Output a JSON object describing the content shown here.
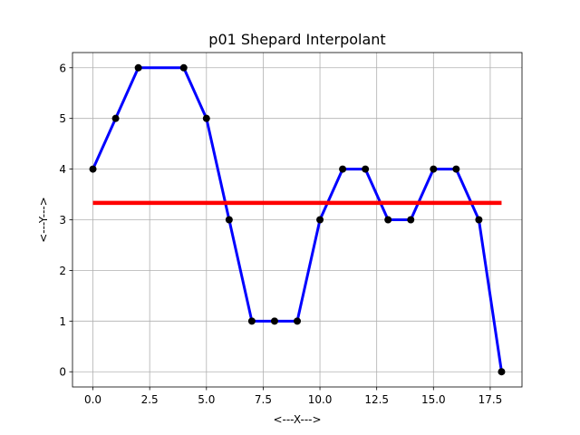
{
  "chart_data": {
    "type": "line",
    "title": "p01 Shepard Interpolant",
    "xlabel": "<---X--->",
    "ylabel": "<---Y--->",
    "xlim": [
      -0.9,
      18.9
    ],
    "ylim": [
      -0.3,
      6.3
    ],
    "grid": true,
    "xticks": [
      0.0,
      2.5,
      5.0,
      7.5,
      10.0,
      12.5,
      15.0,
      17.5
    ],
    "xtick_labels": [
      "0.0",
      "2.5",
      "5.0",
      "7.5",
      "10.0",
      "12.5",
      "15.0",
      "17.5"
    ],
    "yticks": [
      0,
      1,
      2,
      3,
      4,
      5,
      6
    ],
    "ytick_labels": [
      "0",
      "1",
      "2",
      "3",
      "4",
      "5",
      "6"
    ],
    "series": [
      {
        "color": "#0000ff",
        "style": "line",
        "x": [
          0,
          1,
          2,
          3,
          4,
          5,
          6,
          7,
          8,
          9,
          10,
          11,
          12,
          13,
          14,
          15,
          16,
          17,
          18
        ],
        "y": [
          4,
          5,
          6,
          6,
          6,
          5,
          3,
          1,
          1,
          1,
          3,
          4,
          4,
          3,
          3,
          4,
          4,
          3,
          0
        ]
      },
      {
        "color": "#ff0000",
        "style": "line",
        "x": [
          0,
          18
        ],
        "y": [
          3.333,
          3.333
        ]
      },
      {
        "color": "#000000",
        "style": "markers",
        "x": [
          0,
          1,
          2,
          4,
          5,
          6,
          7,
          8,
          9,
          10,
          11,
          12,
          13,
          14,
          15,
          16,
          17,
          18
        ],
        "y": [
          4,
          5,
          6,
          6,
          5,
          3,
          1,
          1,
          1,
          3,
          4,
          4,
          3,
          3,
          4,
          4,
          3,
          0
        ]
      }
    ]
  }
}
